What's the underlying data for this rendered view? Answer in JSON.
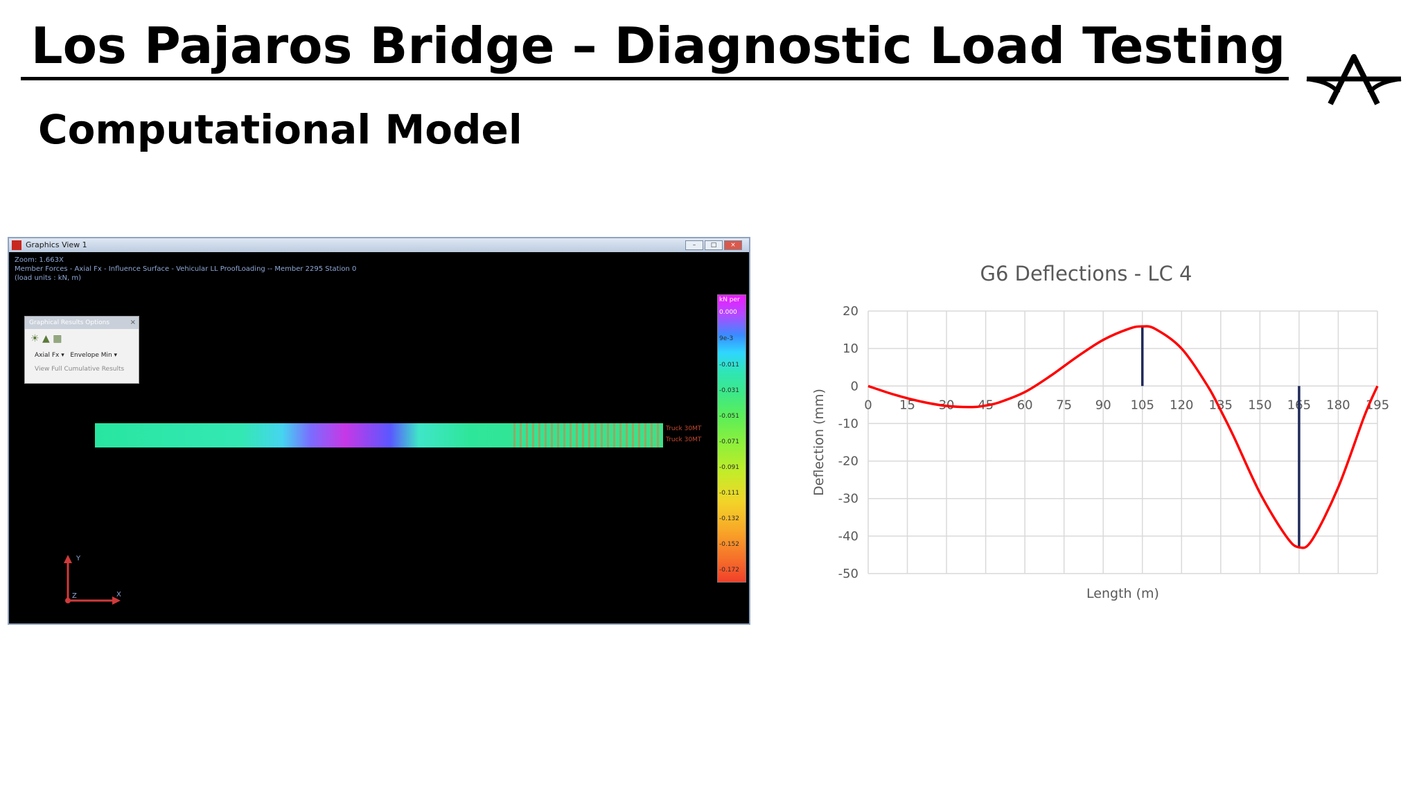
{
  "slide": {
    "title": "Los Pajaros Bridge – Diagnostic Load Testing",
    "subtitle": "Computational Model"
  },
  "gfx_window": {
    "title": "Graphics View 1",
    "info_lines": [
      "Zoom: 1.663X",
      "Member Forces - Axial Fx - Influence Surface - Vehicular LL ProofLoading -- Member 2295 Station 0",
      "(load units : kN, m)"
    ],
    "options_panel": {
      "header": "Graphical Results Options",
      "result_type": "Axial Fx",
      "envelope": "Envelope Min",
      "link": "View Full Cumulative Results"
    },
    "beam_labels": [
      "Truck 30MT",
      "Truck 30MT"
    ],
    "legend": {
      "header": "kN per",
      "ticks": [
        "0.000",
        "9e-3",
        "-0.011",
        "-0.031",
        "-0.051",
        "-0.071",
        "-0.091",
        "-0.111",
        "-0.132",
        "-0.152",
        "-0.172"
      ]
    },
    "axis_labels": {
      "y": "Y",
      "z": "Z",
      "x": "X"
    }
  },
  "chart_data": {
    "type": "line",
    "title": "G6 Deflections - LC 4",
    "xlabel": "Length  (m)",
    "ylabel": "Deflection (mm)",
    "xlim": [
      0,
      195
    ],
    "ylim": [
      -50,
      20
    ],
    "x_ticks": [
      0,
      15,
      30,
      45,
      60,
      75,
      90,
      105,
      120,
      135,
      150,
      165,
      180,
      195
    ],
    "y_ticks": [
      20,
      10,
      0,
      -10,
      -20,
      -30,
      -40,
      -50
    ],
    "grid": true,
    "series": [
      {
        "color": "#ff0000",
        "x": [
          0,
          10,
          20,
          30,
          40,
          45,
          50,
          60,
          70,
          80,
          90,
          100,
          105,
          110,
          120,
          130,
          135,
          140,
          150,
          160,
          165,
          170,
          180,
          190,
          195
        ],
        "y": [
          0,
          -2.3,
          -4.1,
          -5.3,
          -5.6,
          -5.2,
          -4.4,
          -1.6,
          2.8,
          7.8,
          12.3,
          15.3,
          15.9,
          15.2,
          10,
          0,
          -6.5,
          -13.5,
          -28.5,
          -40,
          -43,
          -41,
          -27,
          -8,
          0
        ]
      }
    ],
    "markers": [
      {
        "x": 105,
        "y_top": 16,
        "y_bottom": 0,
        "color": "#1f2a5a"
      },
      {
        "x": 165,
        "y_top": 0,
        "y_bottom": -43,
        "color": "#1f2a5a"
      }
    ]
  }
}
